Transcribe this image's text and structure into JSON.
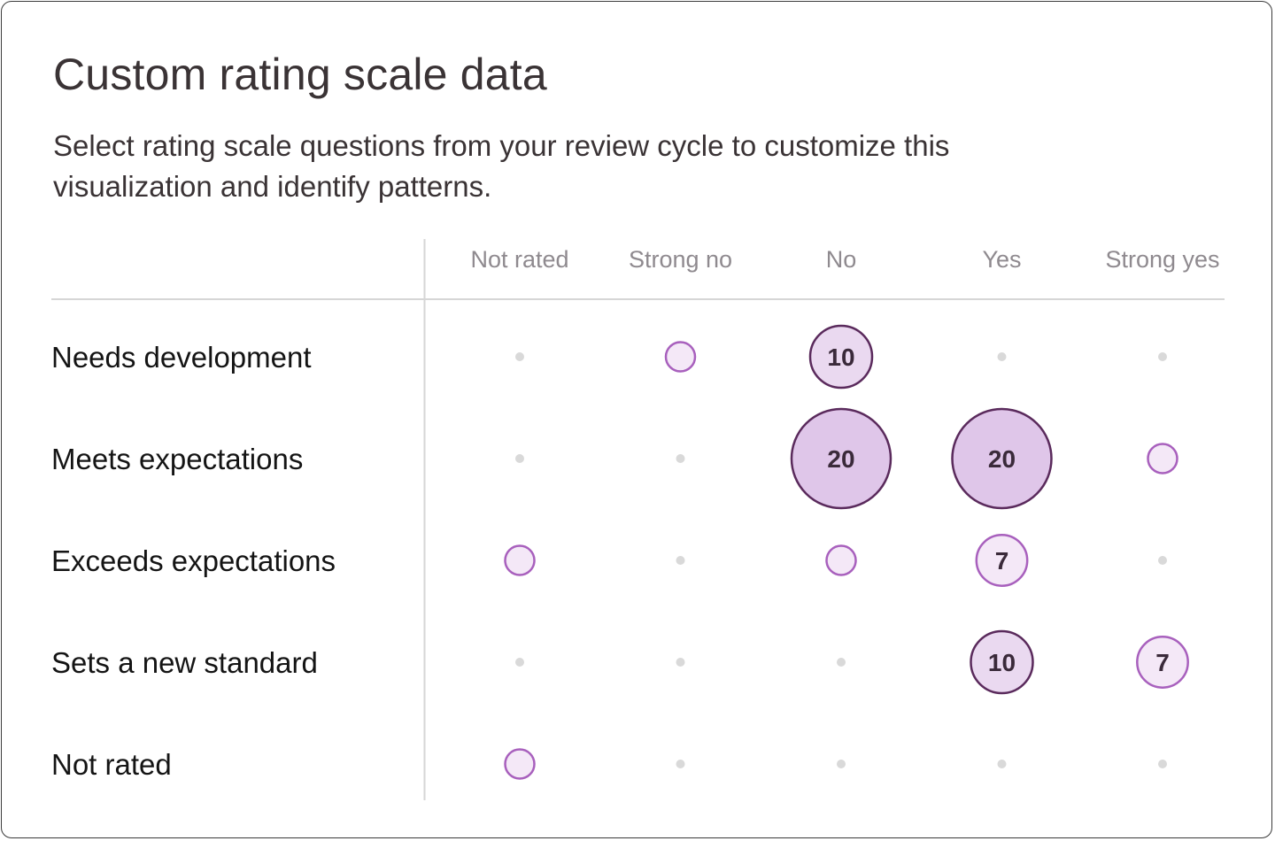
{
  "card": {
    "title": "Custom rating scale data",
    "subtitle": "Select rating scale questions from your review cycle to customize this visualization and identify patterns."
  },
  "colors": {
    "border": "#3a3a3a",
    "grid": "#d6d6d6",
    "dot": "#d9d9d9",
    "bubble_fill_small": "#f4e8f7",
    "bubble_fill_medium": "#ead9f0",
    "bubble_fill_large": "#dfc6e9",
    "bubble_stroke_small": "#a860bd",
    "bubble_stroke_large": "#5a2a5c",
    "label_text": "#3a2a3a"
  },
  "chart_data": {
    "type": "bubble-matrix",
    "columns": [
      "Not rated",
      "Strong no",
      "No",
      "Yes",
      "Strong yes"
    ],
    "rows": [
      "Needs development",
      "Meets expectations",
      "Exceeds expectations",
      "Sets a new standard",
      "Not rated"
    ],
    "cells": [
      {
        "row": 0,
        "col": 0,
        "kind": "empty"
      },
      {
        "row": 0,
        "col": 1,
        "kind": "small"
      },
      {
        "row": 0,
        "col": 2,
        "kind": "value",
        "value": 10
      },
      {
        "row": 0,
        "col": 3,
        "kind": "empty"
      },
      {
        "row": 0,
        "col": 4,
        "kind": "empty"
      },
      {
        "row": 1,
        "col": 0,
        "kind": "empty"
      },
      {
        "row": 1,
        "col": 1,
        "kind": "empty"
      },
      {
        "row": 1,
        "col": 2,
        "kind": "value",
        "value": 20
      },
      {
        "row": 1,
        "col": 3,
        "kind": "value",
        "value": 20
      },
      {
        "row": 1,
        "col": 4,
        "kind": "small"
      },
      {
        "row": 2,
        "col": 0,
        "kind": "small"
      },
      {
        "row": 2,
        "col": 1,
        "kind": "empty"
      },
      {
        "row": 2,
        "col": 2,
        "kind": "small"
      },
      {
        "row": 2,
        "col": 3,
        "kind": "value",
        "value": 7
      },
      {
        "row": 2,
        "col": 4,
        "kind": "empty"
      },
      {
        "row": 3,
        "col": 0,
        "kind": "empty"
      },
      {
        "row": 3,
        "col": 1,
        "kind": "empty"
      },
      {
        "row": 3,
        "col": 2,
        "kind": "empty"
      },
      {
        "row": 3,
        "col": 3,
        "kind": "value",
        "value": 10
      },
      {
        "row": 3,
        "col": 4,
        "kind": "value",
        "value": 7
      },
      {
        "row": 4,
        "col": 0,
        "kind": "small"
      },
      {
        "row": 4,
        "col": 1,
        "kind": "empty"
      },
      {
        "row": 4,
        "col": 2,
        "kind": "empty"
      },
      {
        "row": 4,
        "col": 3,
        "kind": "empty"
      },
      {
        "row": 4,
        "col": 4,
        "kind": "empty"
      }
    ]
  }
}
